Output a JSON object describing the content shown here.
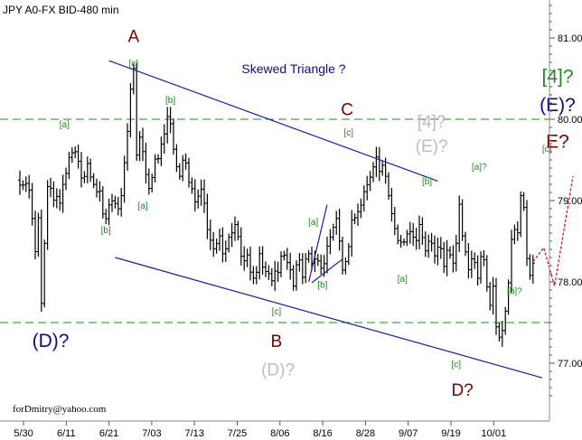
{
  "chart_data": {
    "type": "ohlc",
    "title": "JPY A0-FX BID-480 min",
    "subtitle": "Skewed Triangle ?",
    "watermark": "forDmitry@yahoo.com",
    "y_ticks": [
      "81.00",
      "80.00",
      "79.00",
      "78.00",
      "77.00"
    ],
    "ylim": [
      76.55,
      81.45
    ],
    "x_ticks": [
      "5/30",
      "6/11",
      "6/21",
      "7/03",
      "7/13",
      "7/25",
      "8/06",
      "8/16",
      "8/28",
      "9/07",
      "9/19",
      "10/01"
    ],
    "horizontal_levels": [
      80.0,
      77.5
    ],
    "colors": {
      "bars": "#000000",
      "trendlines": "#1a1aa8",
      "levels": "#1e8a1e",
      "forecast": "#e00000",
      "dark_red": "#7a0000",
      "navy": "#0c0c78",
      "grey": "#bdbdbd",
      "green": "#1e8a1e"
    },
    "series_points": [
      [
        0.0,
        79.25
      ],
      [
        3.0,
        79.15
      ],
      [
        5.0,
        78.35
      ],
      [
        6.5,
        78.95
      ],
      [
        7.0,
        77.75
      ],
      [
        9.0,
        79.15
      ],
      [
        11.0,
        79.05
      ],
      [
        13.0,
        78.95
      ],
      [
        15.0,
        79.35
      ],
      [
        17.5,
        79.7
      ],
      [
        20.0,
        79.25
      ],
      [
        22.0,
        79.45
      ],
      [
        24.0,
        79.15
      ],
      [
        26.0,
        79.1
      ],
      [
        27.5,
        78.7
      ],
      [
        29.5,
        79.05
      ],
      [
        31.0,
        78.95
      ],
      [
        32.5,
        78.8
      ],
      [
        34.0,
        79.45
      ],
      [
        35.0,
        79.85
      ],
      [
        36.5,
        80.55
      ],
      [
        37.0,
        80.6
      ],
      [
        38.0,
        79.55
      ],
      [
        39.0,
        79.8
      ],
      [
        40.5,
        79.45
      ],
      [
        42.0,
        79.2
      ],
      [
        44.0,
        79.45
      ],
      [
        45.0,
        79.5
      ],
      [
        46.5,
        79.8
      ],
      [
        48.5,
        80.05
      ],
      [
        50.0,
        79.6
      ],
      [
        52.0,
        79.35
      ],
      [
        53.5,
        79.55
      ],
      [
        55.0,
        79.2
      ],
      [
        57.0,
        79.0
      ],
      [
        59.0,
        79.2
      ],
      [
        61.0,
        78.7
      ],
      [
        63.0,
        78.4
      ],
      [
        65.0,
        78.6
      ],
      [
        66.5,
        78.3
      ],
      [
        68.0,
        78.55
      ],
      [
        70.0,
        78.75
      ],
      [
        72.5,
        78.15
      ],
      [
        74.0,
        78.3
      ],
      [
        76.0,
        78.0
      ],
      [
        78.0,
        78.3
      ],
      [
        80.0,
        78.1
      ],
      [
        82.0,
        78.05
      ],
      [
        84.0,
        78.1
      ],
      [
        85.5,
        78.35
      ],
      [
        87.5,
        78.2
      ],
      [
        89.0,
        77.95
      ],
      [
        90.5,
        78.35
      ],
      [
        92.0,
        78.05
      ],
      [
        93.5,
        78.35
      ],
      [
        95.0,
        78.25
      ],
      [
        96.5,
        78.35
      ],
      [
        98.0,
        78.15
      ],
      [
        100.0,
        78.4
      ],
      [
        101.5,
        78.55
      ],
      [
        103.0,
        78.75
      ],
      [
        105.0,
        78.2
      ],
      [
        106.5,
        78.35
      ],
      [
        108.0,
        78.75
      ],
      [
        110.0,
        78.9
      ],
      [
        112.0,
        79.05
      ],
      [
        114.0,
        79.3
      ],
      [
        115.5,
        79.55
      ],
      [
        117.0,
        79.4
      ],
      [
        118.5,
        79.45
      ],
      [
        120.0,
        79.1
      ],
      [
        121.5,
        78.75
      ],
      [
        123.0,
        78.45
      ],
      [
        125.0,
        78.55
      ],
      [
        127.0,
        78.65
      ],
      [
        128.5,
        78.45
      ],
      [
        130.0,
        78.65
      ],
      [
        132.0,
        78.4
      ],
      [
        133.5,
        78.55
      ],
      [
        135.0,
        78.3
      ],
      [
        136.5,
        78.45
      ],
      [
        138.0,
        78.2
      ],
      [
        139.5,
        78.4
      ],
      [
        141.0,
        78.25
      ],
      [
        142.0,
        78.45
      ],
      [
        143.0,
        78.9
      ],
      [
        144.5,
        78.45
      ],
      [
        146.0,
        78.1
      ],
      [
        147.5,
        78.35
      ],
      [
        149.0,
        78.0
      ],
      [
        150.5,
        78.4
      ],
      [
        152.0,
        77.95
      ],
      [
        153.0,
        77.7
      ],
      [
        154.0,
        77.9
      ],
      [
        155.5,
        77.25
      ],
      [
        156.5,
        77.3
      ],
      [
        157.5,
        77.55
      ],
      [
        159.0,
        78.0
      ],
      [
        160.5,
        78.75
      ],
      [
        162.0,
        78.55
      ],
      [
        163.0,
        79.1
      ],
      [
        164.0,
        78.9
      ],
      [
        165.0,
        78.25
      ],
      [
        166.0,
        78.05
      ],
      [
        167.0,
        78.25
      ]
    ],
    "bar_range_half": 0.14,
    "forecast_path": [
      [
        167.0,
        78.25
      ],
      [
        170.5,
        78.42
      ],
      [
        174.0,
        77.95
      ],
      [
        180.0,
        79.3
      ]
    ],
    "trendlines": [
      {
        "from": [
          29.0,
          80.72
        ],
        "to": [
          136.0,
          79.24
        ]
      },
      {
        "from": [
          31.0,
          78.3
        ],
        "to": [
          170.0,
          76.82
        ]
      },
      {
        "from": [
          94.0,
          78.0
        ],
        "to": [
          100.0,
          78.95
        ]
      },
      {
        "from": [
          95.0,
          77.99
        ],
        "to": [
          105.0,
          78.28
        ]
      }
    ],
    "labels": [
      {
        "text": "A",
        "x": 37.0,
        "y": 80.95,
        "color": "dark_red",
        "size": 19,
        "anchor": "middle"
      },
      {
        "text": "[c]",
        "x": 37.0,
        "y": 80.65,
        "color": "green",
        "size": 10,
        "anchor": "middle"
      },
      {
        "text": "[a]",
        "x": 14.5,
        "y": 79.9,
        "color": "green",
        "size": 10,
        "anchor": "middle"
      },
      {
        "text": "[b]",
        "x": 49.0,
        "y": 80.2,
        "color": "green",
        "size": 10,
        "anchor": "middle"
      },
      {
        "text": "[b]",
        "x": 28.0,
        "y": 78.6,
        "color": "green",
        "size": 10,
        "anchor": "middle"
      },
      {
        "text": "[a]",
        "x": 40.0,
        "y": 78.9,
        "color": "green",
        "size": 10,
        "anchor": "middle"
      },
      {
        "text": "C",
        "x": 106.5,
        "y": 80.05,
        "color": "dark_red",
        "size": 19,
        "anchor": "middle"
      },
      {
        "text": "[c]",
        "x": 107.0,
        "y": 79.8,
        "color": "green",
        "size": 10,
        "anchor": "middle"
      },
      {
        "text": "[a]",
        "x": 95.5,
        "y": 78.7,
        "color": "green",
        "size": 10,
        "anchor": "middle"
      },
      {
        "text": "[b]",
        "x": 98.5,
        "y": 77.93,
        "color": "green",
        "size": 10,
        "anchor": "middle"
      },
      {
        "text": "[c]",
        "x": 83.5,
        "y": 77.6,
        "color": "green",
        "size": 10,
        "anchor": "middle"
      },
      {
        "text": "B",
        "x": 83.5,
        "y": 77.2,
        "color": "dark_red",
        "size": 19,
        "anchor": "middle"
      },
      {
        "text": "(D)?",
        "x": 84.0,
        "y": 76.85,
        "color": "grey",
        "size": 19,
        "anchor": "middle"
      },
      {
        "text": "[b]",
        "x": 132.5,
        "y": 79.2,
        "color": "green",
        "size": 10,
        "anchor": "middle"
      },
      {
        "text": "[a]",
        "x": 124.5,
        "y": 78.0,
        "color": "green",
        "size": 10,
        "anchor": "middle"
      },
      {
        "text": "[4]?",
        "x": 134.0,
        "y": 79.9,
        "color": "grey",
        "size": 19,
        "anchor": "middle"
      },
      {
        "text": "(E)?",
        "x": 134.0,
        "y": 79.6,
        "color": "grey",
        "size": 19,
        "anchor": "middle"
      },
      {
        "text": "[a]?",
        "x": 149.5,
        "y": 79.38,
        "color": "green",
        "size": 10,
        "anchor": "middle"
      },
      {
        "text": "[c]",
        "x": 142.0,
        "y": 76.95,
        "color": "green",
        "size": 10,
        "anchor": "middle"
      },
      {
        "text": "D?",
        "x": 144.0,
        "y": 76.6,
        "color": "dark_red",
        "size": 19,
        "anchor": "middle"
      },
      {
        "text": "[b]?",
        "x": 161.0,
        "y": 77.85,
        "color": "green",
        "size": 10,
        "anchor": "middle"
      },
      {
        "text": "[c]",
        "x": 171.5,
        "y": 79.6,
        "color": "green",
        "size": 10,
        "anchor": "middle"
      },
      {
        "text": "[4]?",
        "x": 175.0,
        "y": 80.45,
        "color": "green",
        "size": 21,
        "anchor": "middle"
      },
      {
        "text": "(E)?",
        "x": 175.0,
        "y": 80.1,
        "color": "navy",
        "size": 21,
        "anchor": "middle"
      },
      {
        "text": "E?",
        "x": 175.0,
        "y": 79.65,
        "color": "dark_red",
        "size": 21,
        "anchor": "middle"
      },
      {
        "text": "(D)?",
        "x": 10.0,
        "y": 77.2,
        "color": "navy",
        "size": 21,
        "anchor": "middle"
      }
    ]
  }
}
